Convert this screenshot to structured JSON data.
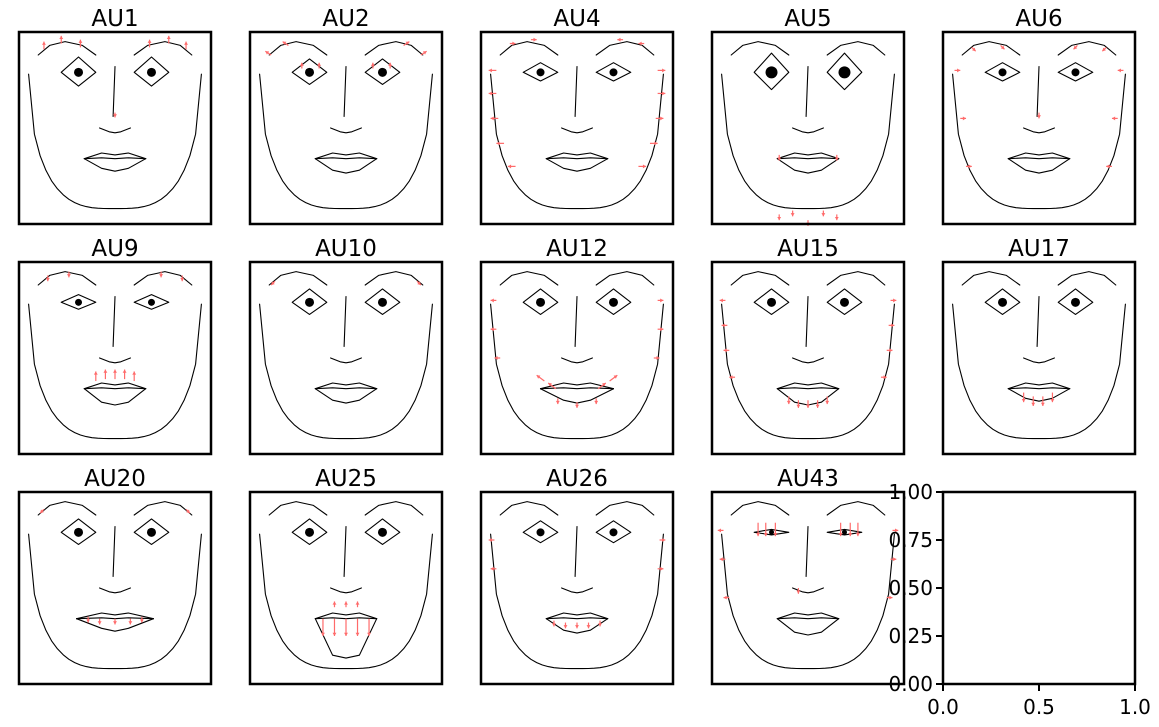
{
  "panels": [
    {
      "title": "AU1"
    },
    {
      "title": "AU2"
    },
    {
      "title": "AU4"
    },
    {
      "title": "AU5"
    },
    {
      "title": "AU6"
    },
    {
      "title": "AU9"
    },
    {
      "title": "AU10"
    },
    {
      "title": "AU12"
    },
    {
      "title": "AU15"
    },
    {
      "title": "AU17"
    },
    {
      "title": "AU20"
    },
    {
      "title": "AU25"
    },
    {
      "title": "AU26"
    },
    {
      "title": "AU43"
    }
  ],
  "empty_axes": {
    "xticks": [
      "0.0",
      "0.5",
      "1.0"
    ],
    "yticks": [
      "1.00",
      "0.75",
      "0.50",
      "0.25",
      "0.00"
    ],
    "xlim": [
      0,
      1
    ],
    "ylim": [
      0,
      1
    ]
  },
  "colors": {
    "arrow": "#ff6a6a",
    "line": "#000000",
    "frame": "#000000"
  }
}
